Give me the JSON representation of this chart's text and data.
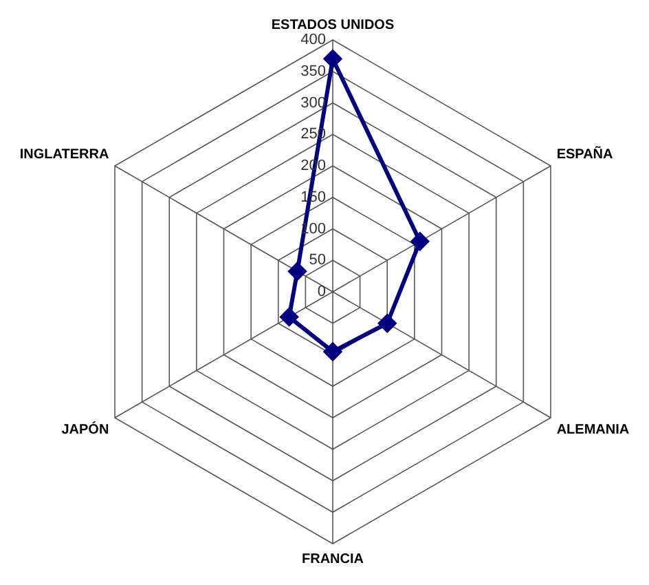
{
  "chart_data": {
    "type": "radar",
    "categories": [
      "ESTADOS UNIDOS",
      "ESPAÑA",
      "ALEMANIA",
      "FRANCIA",
      "JAPÓN",
      "INGLATERRA"
    ],
    "series": [
      {
        "color": "#000080",
        "values": [
          370,
          160,
          100,
          95,
          80,
          65
        ]
      }
    ],
    "ylim": [
      0,
      400
    ],
    "yticks": [
      0,
      50,
      100,
      150,
      200,
      250,
      300,
      350,
      400
    ],
    "grid": true,
    "legend": false,
    "marker": "diamond",
    "line_style": "solid"
  }
}
